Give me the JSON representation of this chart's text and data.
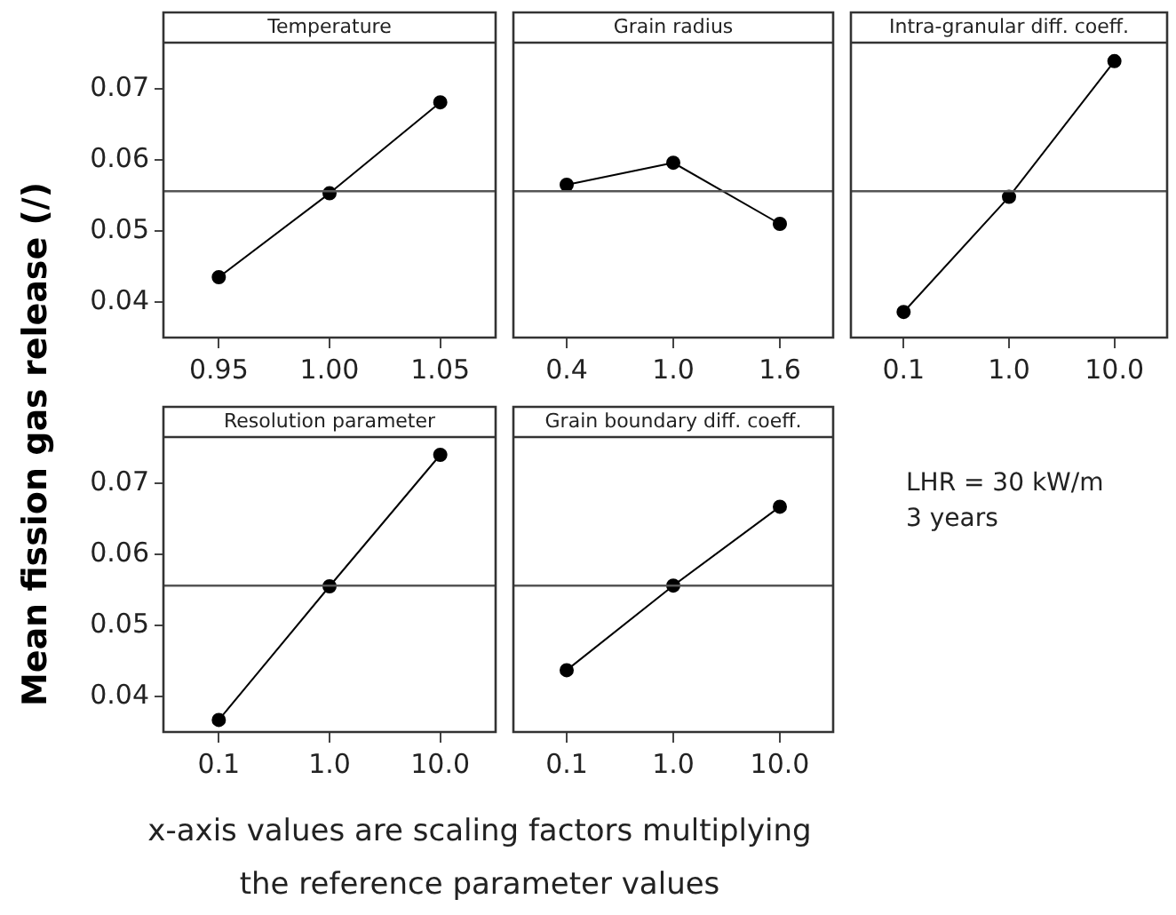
{
  "chart_data": [
    {
      "type": "line",
      "title": "Temperature",
      "ylabel": "Mean fission gas release (/)",
      "categories": [
        "0.95",
        "1.00",
        "1.05"
      ],
      "values": [
        0.0435,
        0.0553,
        0.0681
      ],
      "color": "#000000",
      "ylim": [
        0.035,
        0.0765
      ],
      "yticks": [
        0.04,
        0.05,
        0.06,
        0.07
      ],
      "ref_lines": [
        {
          "axis": "y",
          "value": 0.0556,
          "color": "#555555"
        }
      ],
      "marker": "circle",
      "grid": false
    },
    {
      "type": "line",
      "title": "Grain radius",
      "categories": [
        "0.4",
        "1.0",
        "1.6"
      ],
      "values": [
        0.0565,
        0.0596,
        0.051
      ],
      "color": "#000000",
      "ylim": [
        0.035,
        0.0765
      ],
      "yticks": [
        0.04,
        0.05,
        0.06,
        0.07
      ],
      "ref_lines": [
        {
          "axis": "y",
          "value": 0.0556,
          "color": "#555555"
        }
      ],
      "marker": "circle",
      "grid": false,
      "tick_labels": "x"
    },
    {
      "type": "line",
      "title": "Intra-granular diff. coeff.",
      "categories": [
        "0.1",
        "1.0",
        "10.0"
      ],
      "values": [
        0.0386,
        0.0548,
        0.0739
      ],
      "color": "#000000",
      "ylim": [
        0.035,
        0.0765
      ],
      "yticks": [
        0.04,
        0.05,
        0.06,
        0.07
      ],
      "ref_lines": [
        {
          "axis": "y",
          "value": 0.0556,
          "color": "#555555"
        }
      ],
      "marker": "circle",
      "grid": false,
      "tick_labels": "x"
    },
    {
      "type": "line",
      "title": "Resolution parameter",
      "categories": [
        "0.1",
        "1.0",
        "10.0"
      ],
      "values": [
        0.0367,
        0.0555,
        0.074
      ],
      "color": "#000000",
      "ylim": [
        0.035,
        0.0765
      ],
      "yticks": [
        0.04,
        0.05,
        0.06,
        0.07
      ],
      "ref_lines": [
        {
          "axis": "y",
          "value": 0.0556,
          "color": "#555555"
        }
      ],
      "marker": "circle",
      "grid": false
    },
    {
      "type": "line",
      "title": "Grain boundary diff. coeff.",
      "categories": [
        "0.1",
        "1.0",
        "10.0"
      ],
      "values": [
        0.0437,
        0.0556,
        0.0667
      ],
      "color": "#000000",
      "ylim": [
        0.035,
        0.0765
      ],
      "yticks": [
        0.04,
        0.05,
        0.06,
        0.07
      ],
      "ref_lines": [
        {
          "axis": "y",
          "value": 0.0556,
          "color": "#555555"
        }
      ],
      "marker": "circle",
      "grid": false,
      "tick_labels": "x",
      "annotations": [
        "LHR = 30 kW/m",
        "3 years",
        "x-axis values are scaling factors multiplying",
        "the reference parameter values"
      ]
    }
  ]
}
